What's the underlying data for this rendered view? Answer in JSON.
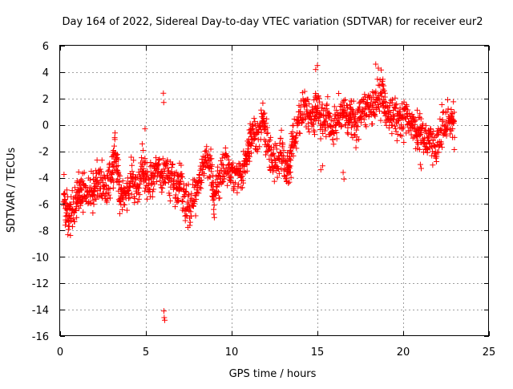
{
  "chart_data": {
    "type": "scatter",
    "title": "Day 164 of 2022, Sidereal Day-to-day VTEC variation (SDTVAR) for receiver eur2",
    "xlabel": "GPS time / hours",
    "ylabel": "SDTVAR / TECUs",
    "xlim": [
      0,
      25
    ],
    "ylim": [
      -16,
      6
    ],
    "xticks": [
      0,
      5,
      10,
      15,
      20,
      25
    ],
    "yticks": [
      -16,
      -14,
      -12,
      -10,
      -8,
      -6,
      -4,
      -2,
      0,
      2,
      4,
      6
    ],
    "grid": true,
    "marker": "+",
    "marker_color": "#ff0000",
    "trend": [
      [
        0.2,
        -5.0
      ],
      [
        0.4,
        -6.5
      ],
      [
        0.6,
        -7.0
      ],
      [
        0.9,
        -6.0
      ],
      [
        1.1,
        -5.5
      ],
      [
        1.3,
        -5.0
      ],
      [
        1.6,
        -5.3
      ],
      [
        1.9,
        -5.0
      ],
      [
        2.1,
        -4.5
      ],
      [
        2.4,
        -4.0
      ],
      [
        2.7,
        -5.0
      ],
      [
        3.0,
        -4.0
      ],
      [
        3.2,
        -2.0
      ],
      [
        3.4,
        -4.5
      ],
      [
        3.6,
        -5.5
      ],
      [
        3.9,
        -5.0
      ],
      [
        4.2,
        -4.0
      ],
      [
        4.5,
        -5.0
      ],
      [
        4.8,
        -3.0
      ],
      [
        5.0,
        -4.0
      ],
      [
        5.3,
        -4.5
      ],
      [
        5.6,
        -3.0
      ],
      [
        5.9,
        -4.0
      ],
      [
        6.2,
        -3.5
      ],
      [
        6.5,
        -4.0
      ],
      [
        6.8,
        -5.0
      ],
      [
        7.0,
        -4.2
      ],
      [
        7.3,
        -5.5
      ],
      [
        7.6,
        -6.5
      ],
      [
        7.9,
        -5.0
      ],
      [
        8.2,
        -4.0
      ],
      [
        8.5,
        -2.5
      ],
      [
        8.8,
        -3.5
      ],
      [
        9.0,
        -5.5
      ],
      [
        9.3,
        -4.0
      ],
      [
        9.6,
        -3.0
      ],
      [
        9.9,
        -4.0
      ],
      [
        10.2,
        -3.5
      ],
      [
        10.5,
        -4.0
      ],
      [
        10.8,
        -3.0
      ],
      [
        11.0,
        -2.0
      ],
      [
        11.2,
        -0.5
      ],
      [
        11.5,
        -1.5
      ],
      [
        11.8,
        0.5
      ],
      [
        12.0,
        -1.0
      ],
      [
        12.3,
        -2.5
      ],
      [
        12.6,
        -3.0
      ],
      [
        12.9,
        -2.0
      ],
      [
        13.2,
        -3.5
      ],
      [
        13.4,
        -3.0
      ],
      [
        13.6,
        -1.0
      ],
      [
        13.9,
        0.5
      ],
      [
        14.2,
        1.0
      ],
      [
        14.5,
        0.5
      ],
      [
        14.8,
        0.8
      ],
      [
        15.0,
        1.5
      ],
      [
        15.3,
        0.0
      ],
      [
        15.6,
        0.5
      ],
      [
        15.9,
        -0.5
      ],
      [
        16.2,
        0.5
      ],
      [
        16.5,
        1.0
      ],
      [
        16.8,
        0.5
      ],
      [
        17.0,
        1.0
      ],
      [
        17.3,
        0.0
      ],
      [
        17.6,
        1.0
      ],
      [
        17.9,
        1.5
      ],
      [
        18.2,
        1.0
      ],
      [
        18.5,
        2.0
      ],
      [
        18.8,
        2.5
      ],
      [
        19.0,
        1.0
      ],
      [
        19.3,
        0.5
      ],
      [
        19.6,
        0.5
      ],
      [
        19.9,
        0.0
      ],
      [
        20.2,
        1.0
      ],
      [
        20.5,
        0.0
      ],
      [
        20.8,
        -0.5
      ],
      [
        21.0,
        -0.5
      ],
      [
        21.3,
        -1.5
      ],
      [
        21.6,
        -1.0
      ],
      [
        21.9,
        -2.0
      ],
      [
        22.2,
        -0.5
      ],
      [
        22.5,
        0.0
      ],
      [
        22.8,
        0.5
      ],
      [
        23.0,
        -0.5
      ]
    ],
    "outliers": [
      [
        6.05,
        -14.1
      ],
      [
        6.07,
        -14.6
      ],
      [
        6.1,
        -14.8
      ],
      [
        6.02,
        2.4
      ],
      [
        6.04,
        1.7
      ],
      [
        15.2,
        -3.4
      ],
      [
        15.3,
        -3.1
      ],
      [
        16.5,
        -3.6
      ],
      [
        16.55,
        -4.1
      ],
      [
        14.9,
        4.2
      ],
      [
        15.0,
        4.5
      ],
      [
        18.4,
        4.6
      ],
      [
        18.55,
        4.3
      ],
      [
        21.0,
        -3.0
      ],
      [
        21.05,
        -3.3
      ],
      [
        4.95,
        -0.3
      ]
    ]
  }
}
